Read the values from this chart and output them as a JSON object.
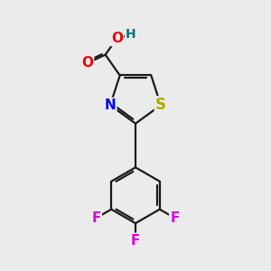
{
  "background_color": "#ebebeb",
  "atom_colors": {
    "C": "#000000",
    "N": "#0000ee",
    "S": "#aaaa00",
    "O": "#ee0000",
    "F": "#dd00dd",
    "H": "#007777"
  },
  "bond_color": "#1a1a1a",
  "font_size": 10,
  "figsize": [
    3.0,
    3.0
  ],
  "dpi": 100
}
